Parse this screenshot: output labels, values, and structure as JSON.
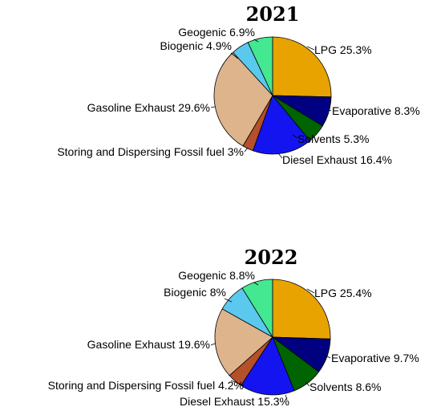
{
  "chart_data": [
    {
      "type": "pie",
      "title": "2021",
      "slices": [
        {
          "label": "LPG",
          "value": 25.3,
          "value_label": "25.3%",
          "color": "#E8A300"
        },
        {
          "label": "Evaporative",
          "value": 8.3,
          "value_label": "8.3%",
          "color": "#000080"
        },
        {
          "label": "Solvents",
          "value": 5.3,
          "value_label": "5.3%",
          "color": "#006400"
        },
        {
          "label": "Diesel Exhaust",
          "value": 16.4,
          "value_label": "16.4%",
          "color": "#1414F0"
        },
        {
          "label": "Storing and Dispersing Fossil fuel",
          "value": 3,
          "value_label": "3%",
          "color": "#B5502A"
        },
        {
          "label": "Gasoline Exhaust",
          "value": 29.6,
          "value_label": "29.6%",
          "color": "#DEB48C"
        },
        {
          "label": "Biogenic",
          "value": 4.9,
          "value_label": "4.9%",
          "color": "#5BC8EE"
        },
        {
          "label": "Geogenic",
          "value": 6.9,
          "value_label": "6.9%",
          "color": "#44E890"
        }
      ]
    },
    {
      "type": "pie",
      "title": "2022",
      "slices": [
        {
          "label": "LPG",
          "value": 25.4,
          "value_label": "25.4%",
          "color": "#E8A300"
        },
        {
          "label": "Evaporative",
          "value": 9.7,
          "value_label": "9.7%",
          "color": "#000080"
        },
        {
          "label": "Solvents",
          "value": 8.6,
          "value_label": "8.6%",
          "color": "#006400"
        },
        {
          "label": "Diesel Exhaust",
          "value": 15.3,
          "value_label": "15.3%",
          "color": "#1414F0"
        },
        {
          "label": "Storing and Dispersing Fossil fuel",
          "value": 4.2,
          "value_label": "4.2%",
          "color": "#B5502A"
        },
        {
          "label": "Gasoline Exhaust",
          "value": 19.6,
          "value_label": "19.6%",
          "color": "#DEB48C"
        },
        {
          "label": "Biogenic",
          "value": 8,
          "value_label": "8%",
          "color": "#5BC8EE"
        },
        {
          "label": "Geogenic",
          "value": 8.8,
          "value_label": "8.8%",
          "color": "#44E890"
        }
      ]
    }
  ]
}
